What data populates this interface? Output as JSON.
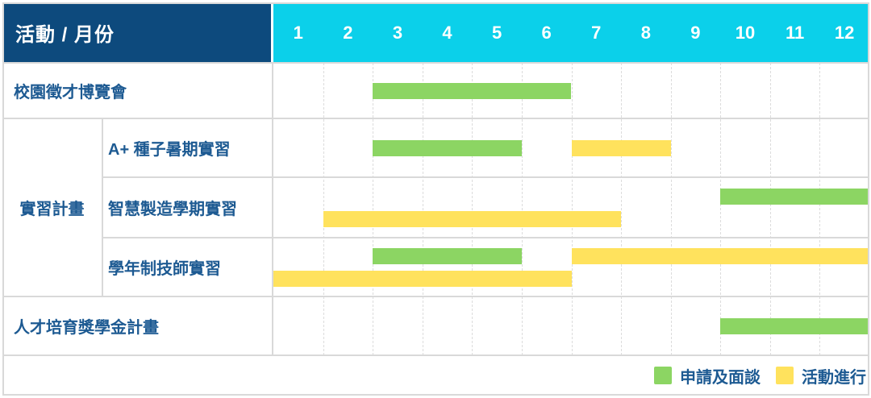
{
  "chart_data": {
    "type": "table",
    "subtype": "gantt",
    "title": "活動 / 月份",
    "months": [
      "1",
      "2",
      "3",
      "4",
      "5",
      "6",
      "7",
      "8",
      "9",
      "10",
      "11",
      "12"
    ],
    "group_label": "實習計畫",
    "rows": [
      {
        "activity": "校園徵才博覽會",
        "group": null,
        "bars": [
          {
            "kind": "apply",
            "phase": "申請及面談",
            "start": 3,
            "end": 6,
            "line": 0
          }
        ]
      },
      {
        "activity": "A+ 種子暑期實習",
        "group": "實習計畫",
        "bars": [
          {
            "kind": "apply",
            "phase": "申請及面談",
            "start": 3,
            "end": 5,
            "line": 0
          },
          {
            "kind": "ongoing",
            "phase": "活動進行",
            "start": 7,
            "end": 8,
            "line": 0
          }
        ]
      },
      {
        "activity": "智慧製造學期實習",
        "group": "實習計畫",
        "bars": [
          {
            "kind": "apply",
            "phase": "申請及面談",
            "start": 10,
            "end": 12,
            "line": 0
          },
          {
            "kind": "ongoing",
            "phase": "活動進行",
            "start": 2,
            "end": 7,
            "line": 1
          }
        ]
      },
      {
        "activity": "學年制技師實習",
        "group": "實習計畫",
        "bars": [
          {
            "kind": "apply",
            "phase": "申請及面談",
            "start": 3,
            "end": 5,
            "line": 0
          },
          {
            "kind": "ongoing",
            "phase": "活動進行",
            "start": 7,
            "end": 12,
            "line": 0
          },
          {
            "kind": "ongoing",
            "phase": "活動進行",
            "start": 1,
            "end": 6,
            "line": 1
          }
        ]
      },
      {
        "activity": "人才培育獎學金計畫",
        "group": null,
        "bars": [
          {
            "kind": "apply",
            "phase": "申請及面談",
            "start": 10,
            "end": 12,
            "line": 0
          }
        ]
      }
    ],
    "legend": [
      {
        "kind": "apply",
        "label": "申請及面談"
      },
      {
        "kind": "ongoing",
        "label": "活動進行"
      }
    ],
    "colors": {
      "header_bg": "#0d4a7d",
      "months_bg": "#0bd0ea",
      "apply": "#8cd563",
      "ongoing": "#ffe25d",
      "label_text": "#1d5a92",
      "grid": "#d9d9d9"
    }
  }
}
